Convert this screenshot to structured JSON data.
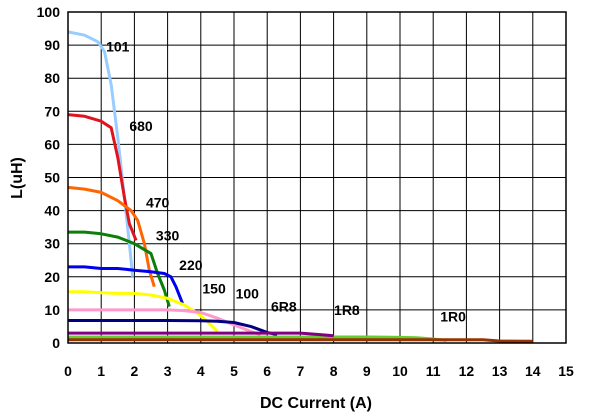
{
  "chart_data": {
    "type": "line",
    "title": "",
    "xlabel": "DC Current (A)",
    "ylabel": "L(uH)",
    "xlim": [
      0,
      15
    ],
    "ylim": [
      0,
      100
    ],
    "x_ticks": [
      0,
      1,
      2,
      3,
      4,
      5,
      6,
      7,
      8,
      9,
      10,
      11,
      12,
      13,
      14,
      15
    ],
    "y_ticks": [
      0,
      10,
      20,
      30,
      40,
      50,
      60,
      70,
      80,
      90,
      100
    ],
    "grid": true,
    "legend": "none",
    "series": [
      {
        "name": "101",
        "color": "#99ccff",
        "points": [
          [
            0,
            94
          ],
          [
            0.5,
            93
          ],
          [
            0.9,
            91
          ],
          [
            1.1,
            88
          ],
          [
            1.3,
            78
          ],
          [
            1.5,
            62
          ],
          [
            1.7,
            44
          ],
          [
            1.85,
            30
          ],
          [
            1.95,
            20
          ]
        ]
      },
      {
        "name": "680",
        "color": "#e0141e",
        "points": [
          [
            0,
            69
          ],
          [
            0.5,
            68.5
          ],
          [
            1.0,
            67
          ],
          [
            1.3,
            65
          ],
          [
            1.5,
            56
          ],
          [
            1.7,
            44
          ],
          [
            1.85,
            36
          ],
          [
            2.05,
            31
          ]
        ]
      },
      {
        "name": "470",
        "color": "#ff6600",
        "points": [
          [
            0,
            47
          ],
          [
            0.5,
            46.5
          ],
          [
            1.0,
            45.5
          ],
          [
            1.5,
            43
          ],
          [
            1.9,
            40
          ],
          [
            2.1,
            37
          ],
          [
            2.3,
            30
          ],
          [
            2.45,
            22
          ],
          [
            2.6,
            17
          ]
        ]
      },
      {
        "name": "330",
        "color": "#0a7f0a",
        "points": [
          [
            0,
            33.5
          ],
          [
            0.5,
            33.5
          ],
          [
            1.0,
            33
          ],
          [
            1.5,
            32
          ],
          [
            2.0,
            30
          ],
          [
            2.5,
            27
          ],
          [
            2.7,
            21
          ],
          [
            2.9,
            16
          ],
          [
            3.05,
            11
          ]
        ]
      },
      {
        "name": "220",
        "color": "#0000ee",
        "points": [
          [
            0,
            23
          ],
          [
            0.5,
            23
          ],
          [
            1.0,
            22.5
          ],
          [
            1.5,
            22.5
          ],
          [
            2.0,
            22
          ],
          [
            2.5,
            21.5
          ],
          [
            2.9,
            21
          ],
          [
            3.1,
            20
          ],
          [
            3.25,
            17
          ],
          [
            3.45,
            12
          ]
        ]
      },
      {
        "name": "150",
        "color": "#ffff00",
        "points": [
          [
            0,
            15.5
          ],
          [
            0.5,
            15.5
          ],
          [
            1.0,
            15.2
          ],
          [
            1.5,
            15
          ],
          [
            2.0,
            15
          ],
          [
            2.5,
            14.5
          ],
          [
            3.0,
            13.5
          ],
          [
            3.5,
            11.5
          ],
          [
            3.9,
            9
          ],
          [
            4.2,
            6.5
          ],
          [
            4.5,
            3.5
          ]
        ]
      },
      {
        "name": "100",
        "color": "#ff99cc",
        "points": [
          [
            0,
            10
          ],
          [
            1.0,
            10
          ],
          [
            2.0,
            10
          ],
          [
            3.0,
            10
          ],
          [
            3.5,
            9.8
          ],
          [
            4.0,
            9.2
          ],
          [
            4.5,
            7.5
          ],
          [
            5.0,
            5.5
          ],
          [
            5.5,
            3.5
          ],
          [
            5.8,
            2.5
          ]
        ]
      },
      {
        "name": "6R8",
        "color": "#000080",
        "points": [
          [
            0,
            6.8
          ],
          [
            1.0,
            6.8
          ],
          [
            2.0,
            6.8
          ],
          [
            3.0,
            6.8
          ],
          [
            4.0,
            6.7
          ],
          [
            4.5,
            6.6
          ],
          [
            5.0,
            6.2
          ],
          [
            5.5,
            5
          ],
          [
            6.0,
            3.2
          ],
          [
            6.3,
            2.5
          ]
        ]
      },
      {
        "name": "1R8",
        "color": "#66cc33",
        "points": [
          [
            0,
            1.8
          ],
          [
            2.0,
            1.8
          ],
          [
            4.0,
            1.8
          ],
          [
            6.0,
            1.8
          ],
          [
            8.0,
            1.8
          ],
          [
            9.0,
            1.8
          ],
          [
            10.0,
            1.7
          ],
          [
            10.5,
            1.6
          ],
          [
            11.0,
            1.2
          ],
          [
            11.4,
            0.8
          ]
        ]
      },
      {
        "name": "",
        "color": "#800080",
        "points": [
          [
            0,
            3
          ],
          [
            2.0,
            3
          ],
          [
            4.0,
            3
          ],
          [
            5.0,
            3
          ],
          [
            6.0,
            3
          ],
          [
            7.0,
            3
          ],
          [
            7.5,
            2.6
          ],
          [
            8.0,
            2.2
          ]
        ]
      },
      {
        "name": "1R0",
        "color": "#993300",
        "points": [
          [
            0,
            1.0
          ],
          [
            2.0,
            1.0
          ],
          [
            4.0,
            1.0
          ],
          [
            6.0,
            1.0
          ],
          [
            8.0,
            1.0
          ],
          [
            10.0,
            1.0
          ],
          [
            11.0,
            1.0
          ],
          [
            12.0,
            1.0
          ],
          [
            12.5,
            1.0
          ],
          [
            13.0,
            0.6
          ],
          [
            14.0,
            0.5
          ]
        ]
      }
    ],
    "annotations": [
      {
        "text": "101",
        "x": 1.5,
        "y": 88
      },
      {
        "text": "680",
        "x": 2.2,
        "y": 64
      },
      {
        "text": "470",
        "x": 2.7,
        "y": 41
      },
      {
        "text": "330",
        "x": 3.0,
        "y": 31
      },
      {
        "text": "220",
        "x": 3.7,
        "y": 22
      },
      {
        "text": "150",
        "x": 4.4,
        "y": 15
      },
      {
        "text": "100",
        "x": 5.4,
        "y": 13.5
      },
      {
        "text": "6R8",
        "x": 6.5,
        "y": 9.5
      },
      {
        "text": "1R8",
        "x": 8.4,
        "y": 8.5
      },
      {
        "text": "1R0",
        "x": 11.6,
        "y": 6.5
      }
    ]
  }
}
